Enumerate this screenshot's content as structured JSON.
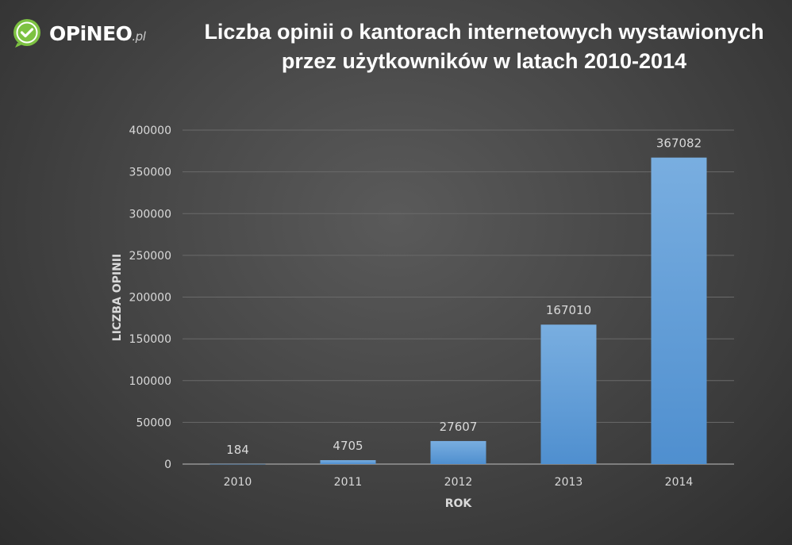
{
  "logo": {
    "brand": "OPiNEO",
    "tld": ".pl",
    "color": "#7dc242"
  },
  "chart_data": {
    "type": "bar",
    "title_line1": "Liczba opinii o kantorach internetowych wystawionych",
    "title_line2": "przez użytkowników w latach  2010-2014",
    "xlabel": "ROK",
    "ylabel": "LICZBA OPINII",
    "categories": [
      "2010",
      "2011",
      "2012",
      "2013",
      "2014"
    ],
    "values": [
      184,
      4705,
      27607,
      167010,
      367082
    ],
    "data_labels": [
      "184",
      "4705",
      "27607",
      "167010",
      "367082"
    ],
    "ylim": [
      0,
      400000
    ],
    "yticks": [
      "0",
      "50000",
      "100000",
      "150000",
      "200000",
      "250000",
      "300000",
      "350000",
      "400000"
    ],
    "grid": true,
    "bar_color": "#5b9bd5"
  }
}
